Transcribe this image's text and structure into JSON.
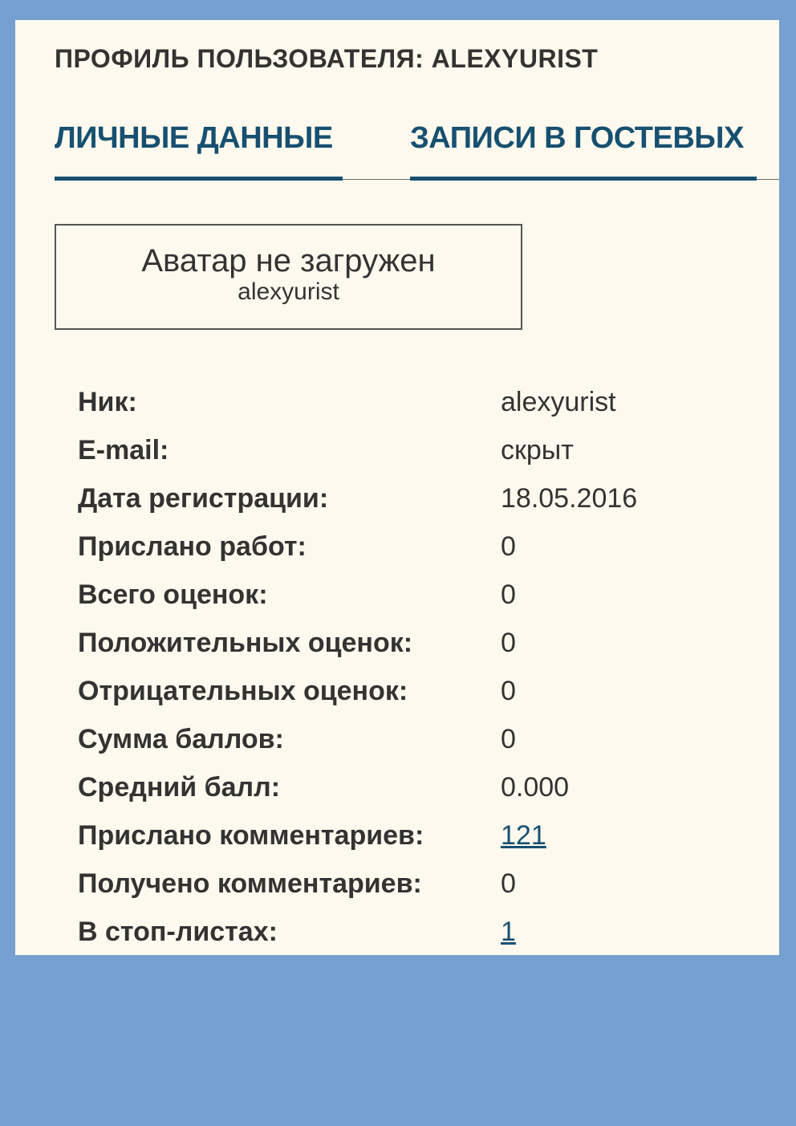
{
  "header": {
    "title": "ПРОФИЛЬ ПОЛЬЗОВАТЕЛЯ: ALEXYURIST"
  },
  "tabs": [
    {
      "label": "ЛИЧНЫЕ ДАННЫЕ"
    },
    {
      "label": "ЗАПИСИ В ГОСТЕВЫХ"
    }
  ],
  "avatar": {
    "text": "Аватар не загружен",
    "username": "alexyurist"
  },
  "stats": [
    {
      "label": "Ник:",
      "value": "alexyurist",
      "link": false
    },
    {
      "label": "E-mail:",
      "value": "скрыт",
      "link": false
    },
    {
      "label": "Дата регистрации:",
      "value": "18.05.2016",
      "link": false
    },
    {
      "label": "Прислано работ:",
      "value": "0",
      "link": false
    },
    {
      "label": "Всего оценок:",
      "value": "0",
      "link": false
    },
    {
      "label": "Положительных оценок:",
      "value": "0",
      "link": false
    },
    {
      "label": "Отрицательных оценок:",
      "value": "0",
      "link": false
    },
    {
      "label": "Сумма баллов:",
      "value": "0",
      "link": false
    },
    {
      "label": "Средний балл:",
      "value": "0.000",
      "link": false
    },
    {
      "label": "Прислано комментариев:",
      "value": "121",
      "link": true
    },
    {
      "label": "Получено комментариев:",
      "value": "0",
      "link": false
    },
    {
      "label": "В стоп-листах:",
      "value": "1",
      "link": true
    }
  ],
  "colors": {
    "background": "#75a0cf",
    "panel": "#fef9ee",
    "accent": "#175070"
  }
}
